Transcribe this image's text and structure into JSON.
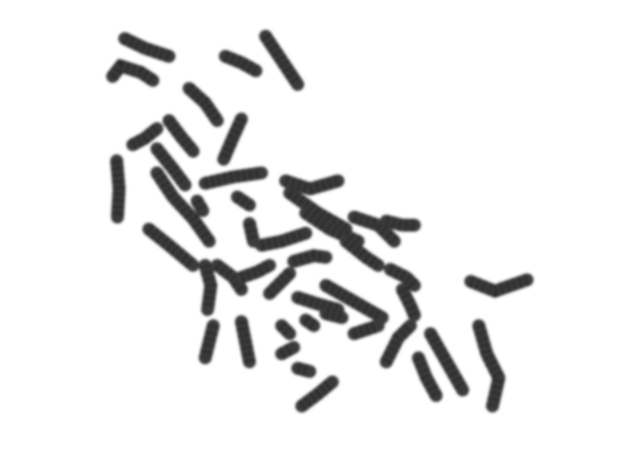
{
  "image": {
    "subject": "metaphase-chromosome-spread",
    "background_color": "#ffffff",
    "chromosome_color": "#3a3a3a",
    "band_color": "#1c1c1c",
    "chromosome_count_visible": 46
  }
}
